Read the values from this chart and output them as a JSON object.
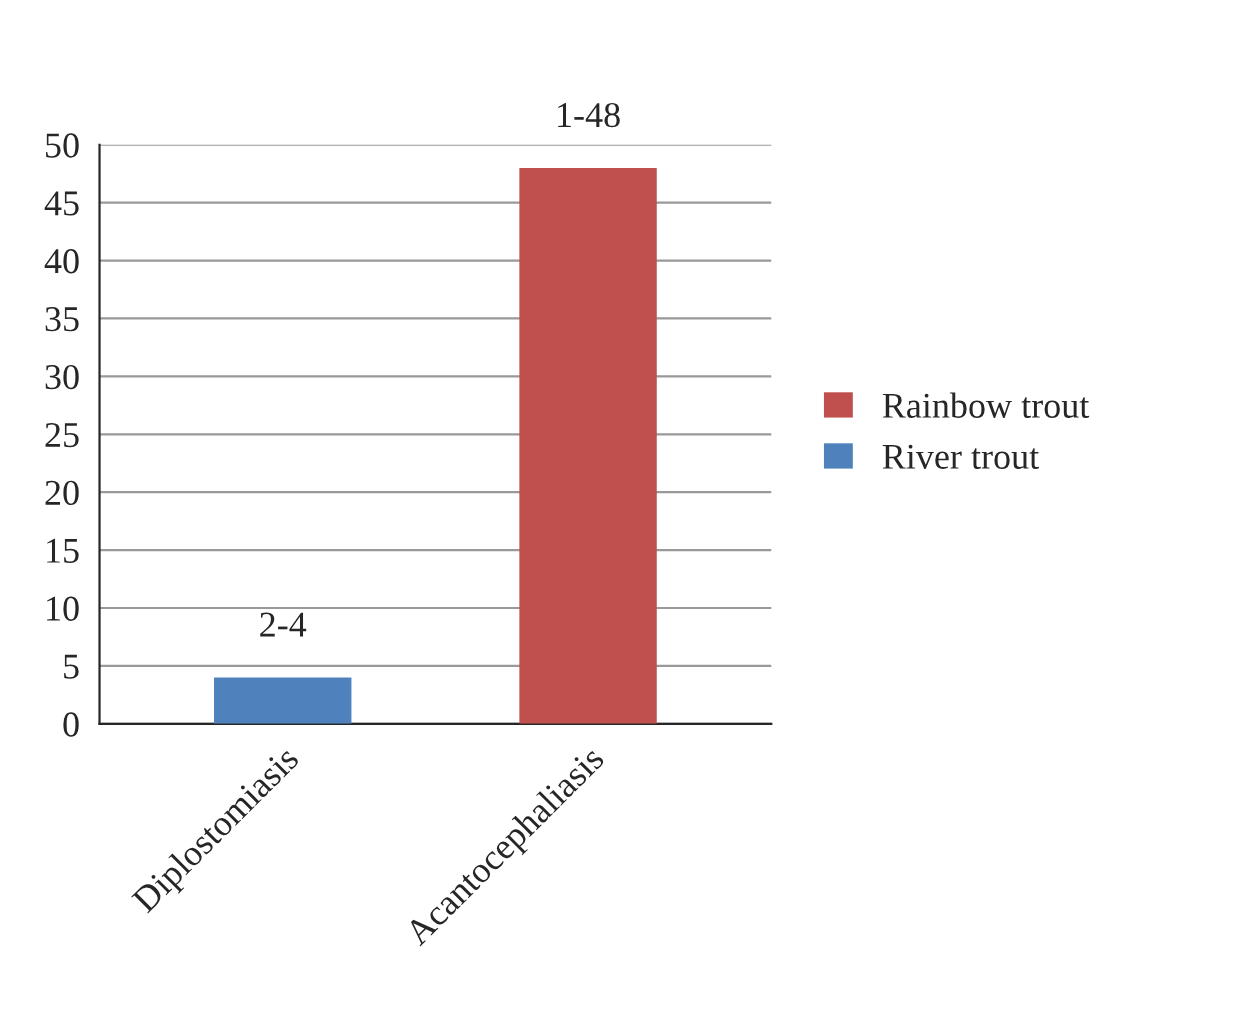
{
  "chart_data": {
    "type": "bar",
    "categories": [
      "Diplostomiasis",
      "Acantocephaliasis"
    ],
    "series": [
      {
        "name": "Rainbow trout",
        "color": "#c0504d",
        "values": [
          null,
          48
        ]
      },
      {
        "name": "River trout",
        "color": "#4f81bd",
        "values": [
          4,
          null
        ]
      }
    ],
    "ylim": [
      0,
      50
    ],
    "yticks": [
      0,
      5,
      10,
      15,
      20,
      25,
      30,
      35,
      40,
      45,
      50
    ],
    "grid": "y",
    "legend": "right",
    "annotations": [
      {
        "text": "2-4",
        "x": "Diplostomiasis",
        "y": 4
      },
      {
        "text": "1-48",
        "x": "Acantocephaliasis",
        "y": 48
      }
    ]
  }
}
